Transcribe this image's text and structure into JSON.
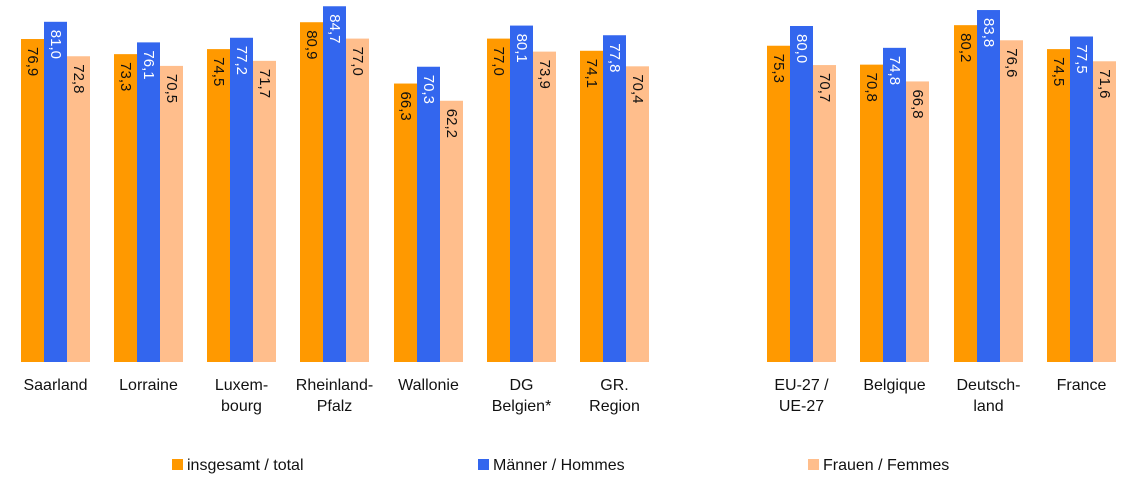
{
  "chart_data": {
    "type": "bar",
    "ylim": [
      0,
      86
    ],
    "grid": false,
    "legend_position": "bottom",
    "series": [
      {
        "name": "insgesamt / total",
        "color": "#FF9900"
      },
      {
        "name": "Männer / Hommes",
        "color": "#3366EE"
      },
      {
        "name": "Frauen / Femmes",
        "color": "#FFBE8C"
      }
    ],
    "groups": [
      {
        "categories": [
          {
            "label": [
              "Saarland"
            ],
            "values": [
              76.9,
              81.0,
              72.8
            ],
            "labels": [
              "76,9",
              "81,0",
              "72,8"
            ]
          },
          {
            "label": [
              "Lorraine"
            ],
            "values": [
              73.3,
              76.1,
              70.5
            ],
            "labels": [
              "73,3",
              "76,1",
              "70,5"
            ]
          },
          {
            "label": [
              "Luxem-",
              "bourg"
            ],
            "values": [
              74.5,
              77.2,
              71.7
            ],
            "labels": [
              "74,5",
              "77,2",
              "71,7"
            ]
          },
          {
            "label": [
              "Rheinland-",
              "Pfalz"
            ],
            "values": [
              80.9,
              84.7,
              77.0
            ],
            "labels": [
              "80,9",
              "84,7",
              "77,0"
            ]
          },
          {
            "label": [
              "Wallonie"
            ],
            "values": [
              66.3,
              70.3,
              62.2
            ],
            "labels": [
              "66,3",
              "70,3",
              "62,2"
            ]
          },
          {
            "label": [
              "DG",
              "Belgien*"
            ],
            "values": [
              77.0,
              80.1,
              73.9
            ],
            "labels": [
              "77,0",
              "80,1",
              "73,9"
            ]
          },
          {
            "label": [
              "GR.",
              "Region"
            ],
            "values": [
              74.1,
              77.8,
              70.4
            ],
            "labels": [
              "74,1",
              "77,8",
              "70,4"
            ]
          }
        ]
      },
      {
        "categories": [
          {
            "label": [
              "EU-27 /",
              "UE-27"
            ],
            "values": [
              75.3,
              80.0,
              70.7
            ],
            "labels": [
              "75,3",
              "80,0",
              "70,7"
            ]
          },
          {
            "label": [
              "Belgique"
            ],
            "values": [
              70.8,
              74.8,
              66.8
            ],
            "labels": [
              "70,8",
              "74,8",
              "66,8"
            ]
          },
          {
            "label": [
              "Deutsch-",
              "land"
            ],
            "values": [
              80.2,
              83.8,
              76.6
            ],
            "labels": [
              "80,2",
              "83,8",
              "76,6"
            ]
          },
          {
            "label": [
              "France"
            ],
            "values": [
              74.5,
              77.5,
              71.6
            ],
            "labels": [
              "74,5",
              "77,5",
              "71,6"
            ]
          }
        ]
      }
    ]
  }
}
